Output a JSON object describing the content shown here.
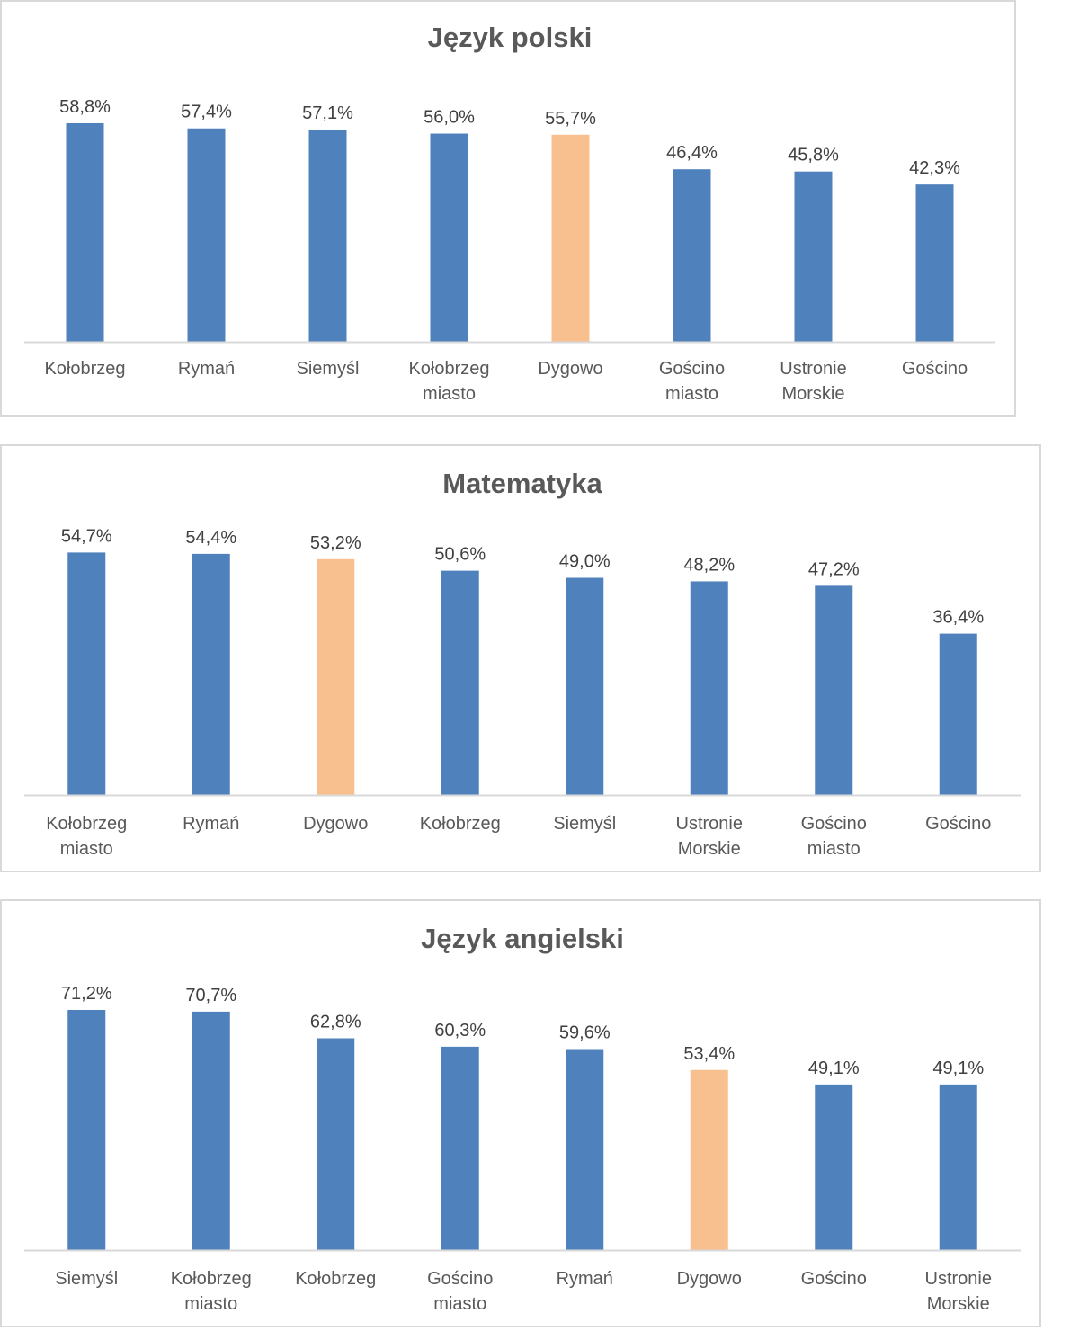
{
  "colors": {
    "bar": "#4f81bd",
    "highlight": "#f8c08f",
    "axis": "#d9d9d9"
  },
  "chart_data": [
    {
      "type": "bar",
      "title": "Język polski",
      "categories": [
        "Kołobrzeg",
        "Rymań",
        "Siemyśl",
        "Kołobrzeg\nmiasto",
        "Dygowo",
        "Gościno\nmiasto",
        "Ustronie\nMorskie",
        "Gościno"
      ],
      "values": [
        58.8,
        57.4,
        57.1,
        56.0,
        55.7,
        46.4,
        45.8,
        42.3
      ],
      "data_labels": [
        "58,8%",
        "57,4%",
        "57,1%",
        "56,0%",
        "55,7%",
        "46,4%",
        "45,8%",
        "42,3%"
      ],
      "highlight_index": 4,
      "ylim": [
        0,
        60
      ],
      "grid": false,
      "xlabel": "",
      "ylabel": ""
    },
    {
      "type": "bar",
      "title": "Matematyka",
      "categories": [
        "Kołobrzeg\nmiasto",
        "Rymań",
        "Dygowo",
        "Kołobrzeg",
        "Siemyśl",
        "Ustronie\nMorskie",
        "Gościno\nmiasto",
        "Gościno"
      ],
      "values": [
        54.7,
        54.4,
        53.2,
        50.6,
        49.0,
        48.2,
        47.2,
        36.4
      ],
      "data_labels": [
        "54,7%",
        "54,4%",
        "53,2%",
        "50,6%",
        "49,0%",
        "48,2%",
        "47,2%",
        "36,4%"
      ],
      "highlight_index": 2,
      "ylim": [
        0,
        56
      ],
      "grid": false,
      "xlabel": "",
      "ylabel": ""
    },
    {
      "type": "bar",
      "title": "Język angielski",
      "categories": [
        "Siemyśl",
        "Kołobrzeg\nmiasto",
        "Kołobrzeg",
        "Gościno\nmiasto",
        "Rymań",
        "Dygowo",
        "Gościno",
        "Ustronie\nMorskie"
      ],
      "values": [
        71.2,
        70.7,
        62.8,
        60.3,
        59.6,
        53.4,
        49.1,
        49.1
      ],
      "data_labels": [
        "71,2%",
        "70,7%",
        "62,8%",
        "60,3%",
        "59,6%",
        "53,4%",
        "49,1%",
        "49,1%"
      ],
      "highlight_index": 5,
      "ylim": [
        0,
        72
      ],
      "grid": false,
      "xlabel": "",
      "ylabel": ""
    }
  ]
}
